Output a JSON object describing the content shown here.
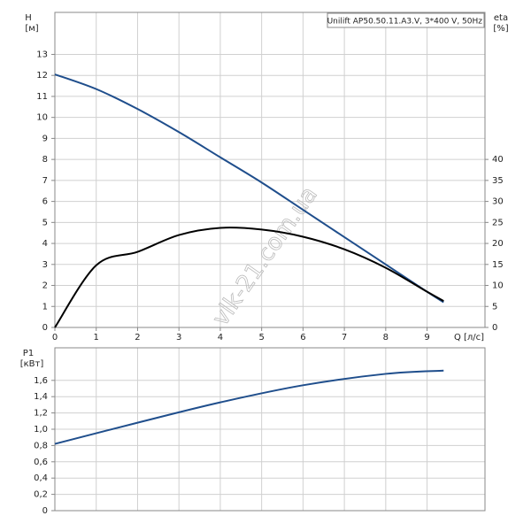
{
  "chart_data": [
    {
      "type": "line",
      "title": "Unilift AP50.50.11.A3.V, 3*400 V, 50Hz",
      "y_label": "H",
      "y_unit": "[м]",
      "y2_label": "eta",
      "y2_unit": "[%]",
      "x_label": "Q [л/с]",
      "watermark": "vlk-21.com.ua",
      "x": [
        0,
        1,
        2,
        3,
        4,
        5,
        6,
        7,
        8,
        9,
        9.4
      ],
      "series": [
        {
          "color": "#1f4e8c",
          "values": [
            12.05,
            11.35,
            10.4,
            9.3,
            8.1,
            6.9,
            5.6,
            4.3,
            3.0,
            1.7,
            1.2
          ]
        },
        {
          "color": "#000000",
          "axis": "y2",
          "values": [
            0,
            14.8,
            18.0,
            22.0,
            23.7,
            23.3,
            21.6,
            18.6,
            14.2,
            8.5,
            6.3
          ]
        }
      ],
      "xlim": [
        0,
        10.4
      ],
      "xticks": [
        0,
        1,
        2,
        3,
        4,
        5,
        6,
        7,
        8,
        9
      ],
      "ylim": [
        0,
        15
      ],
      "yticks": [
        0,
        1,
        2,
        3,
        4,
        5,
        6,
        7,
        8,
        9,
        10,
        11,
        12,
        13
      ],
      "y2lim": [
        0,
        75
      ],
      "y2ticks": [
        0,
        5,
        10,
        15,
        20,
        25,
        30,
        35,
        40
      ],
      "grid": true
    },
    {
      "type": "line",
      "y_label": "P1",
      "y_unit": "[кВт]",
      "x": [
        0,
        2,
        4,
        6,
        8,
        9.4
      ],
      "series": [
        {
          "color": "#1f4e8c",
          "values": [
            0.82,
            1.08,
            1.33,
            1.54,
            1.68,
            1.72
          ]
        }
      ],
      "xlim": [
        0,
        10.4
      ],
      "xticks": [
        0,
        1,
        2,
        3,
        4,
        5,
        6,
        7,
        8,
        9
      ],
      "ylim": [
        0,
        2.0
      ],
      "yticks": [
        0,
        {
          "value": 0.2,
          "label": "0,2"
        },
        {
          "value": 0.4,
          "label": "0,4"
        },
        {
          "value": 0.6,
          "label": "0,6"
        },
        {
          "value": 0.8,
          "label": "0,8"
        },
        {
          "value": 1.0,
          "label": "1,0"
        },
        {
          "value": 1.2,
          "label": "1,2"
        },
        {
          "value": 1.4,
          "label": "1,4"
        },
        {
          "value": 1.6,
          "label": "1,6"
        }
      ],
      "grid": true
    }
  ]
}
